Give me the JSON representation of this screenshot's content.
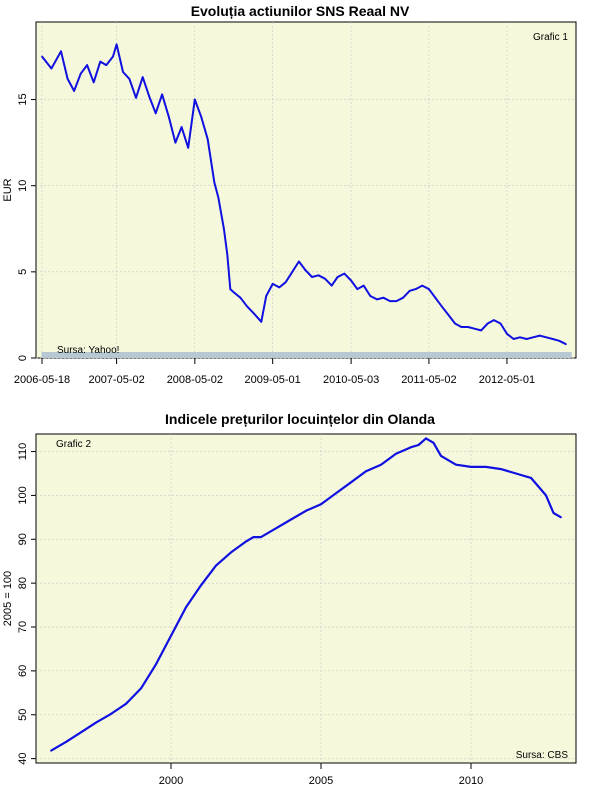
{
  "colors": {
    "panel_bg": "#f6f8dc",
    "line": "#1010e0",
    "grid": "#c8c8c8",
    "rug": "#b8c8d2"
  },
  "chart_data": [
    {
      "type": "line",
      "title": "Evoluția actiunilor SNS Reaal NV",
      "ylabel": "EUR",
      "xlabel": "",
      "annotations": {
        "label": "Grafic 1",
        "source": "Sursa: Yahoo!"
      },
      "xlim": [
        "2006-04-20",
        "2013-03-20"
      ],
      "ylim": [
        0,
        19.5
      ],
      "yticks": [
        0,
        5,
        10,
        15
      ],
      "xtick_labels": [
        "2006-05-18",
        "2007-05-02",
        "2008-05-02",
        "2009-05-01",
        "2010-05-03",
        "2011-05-02",
        "2012-05-01"
      ],
      "x": [
        "2006-05-18",
        "2006-07-01",
        "2006-08-15",
        "2006-09-15",
        "2006-10-15",
        "2006-11-15",
        "2006-12-15",
        "2007-01-15",
        "2007-02-15",
        "2007-03-15",
        "2007-04-15",
        "2007-05-02",
        "2007-06-01",
        "2007-07-01",
        "2007-08-01",
        "2007-09-01",
        "2007-10-01",
        "2007-11-01",
        "2007-12-01",
        "2008-01-01",
        "2008-02-01",
        "2008-03-01",
        "2008-04-01",
        "2008-05-02",
        "2008-06-01",
        "2008-07-01",
        "2008-08-01",
        "2008-08-20",
        "2008-09-15",
        "2008-10-01",
        "2008-10-15",
        "2008-11-01",
        "2008-12-01",
        "2009-01-01",
        "2009-02-01",
        "2009-03-09",
        "2009-04-01",
        "2009-05-01",
        "2009-06-01",
        "2009-07-01",
        "2009-08-01",
        "2009-09-01",
        "2009-10-01",
        "2009-11-01",
        "2009-12-01",
        "2010-01-01",
        "2010-02-01",
        "2010-03-01",
        "2010-04-01",
        "2010-05-03",
        "2010-06-01",
        "2010-07-01",
        "2010-08-01",
        "2010-09-01",
        "2010-10-01",
        "2010-11-01",
        "2010-12-01",
        "2011-01-01",
        "2011-02-01",
        "2011-03-01",
        "2011-04-01",
        "2011-05-02",
        "2011-06-01",
        "2011-07-01",
        "2011-08-01",
        "2011-09-01",
        "2011-10-01",
        "2011-11-01",
        "2011-12-01",
        "2012-01-01",
        "2012-02-01",
        "2012-03-01",
        "2012-04-01",
        "2012-05-01",
        "2012-06-01",
        "2012-07-01",
        "2012-08-01",
        "2012-09-01",
        "2012-10-01",
        "2012-11-01",
        "2012-12-01",
        "2013-01-01",
        "2013-02-01"
      ],
      "y": [
        17.5,
        16.8,
        17.8,
        16.2,
        15.5,
        16.5,
        17.0,
        16.0,
        17.2,
        17.0,
        17.5,
        18.2,
        16.6,
        16.2,
        15.1,
        16.3,
        15.2,
        14.2,
        15.3,
        14.0,
        12.5,
        13.4,
        12.2,
        15.0,
        14.0,
        12.7,
        10.2,
        9.3,
        7.5,
        6.0,
        4.0,
        3.8,
        3.5,
        3.0,
        2.6,
        2.1,
        3.6,
        4.3,
        4.1,
        4.4,
        5.0,
        5.6,
        5.1,
        4.7,
        4.8,
        4.6,
        4.2,
        4.7,
        4.9,
        4.5,
        4.0,
        4.2,
        3.6,
        3.4,
        3.5,
        3.3,
        3.3,
        3.5,
        3.9,
        4.0,
        4.2,
        4.0,
        3.5,
        3.0,
        2.5,
        2.0,
        1.8,
        1.8,
        1.7,
        1.6,
        2.0,
        2.2,
        2.0,
        1.4,
        1.1,
        1.2,
        1.1,
        1.2,
        1.3,
        1.2,
        1.1,
        1.0,
        0.8
      ]
    },
    {
      "type": "line",
      "title": "Indicele prețurilor locuințelor din Olanda",
      "ylabel": "2005 = 100",
      "xlabel": "",
      "annotations": {
        "label": "Grafic 2",
        "source": "Sursa: CBS"
      },
      "xlim": [
        1995.5,
        2013.5
      ],
      "ylim": [
        39,
        114
      ],
      "yticks": [
        40,
        50,
        60,
        70,
        80,
        90,
        100,
        110
      ],
      "xticks": [
        2000,
        2005,
        2010
      ],
      "x": [
        1996.0,
        1996.5,
        1997.0,
        1997.5,
        1998.0,
        1998.5,
        1999.0,
        1999.5,
        2000.0,
        2000.5,
        2001.0,
        2001.5,
        2002.0,
        2002.5,
        2002.75,
        2003.0,
        2003.5,
        2004.0,
        2004.5,
        2005.0,
        2005.5,
        2006.0,
        2006.5,
        2007.0,
        2007.5,
        2008.0,
        2008.25,
        2008.5,
        2008.75,
        2009.0,
        2009.5,
        2010.0,
        2010.5,
        2011.0,
        2011.5,
        2012.0,
        2012.25,
        2012.5,
        2012.75,
        2013.0
      ],
      "y": [
        41.8,
        43.8,
        46.0,
        48.2,
        50.2,
        52.5,
        56.0,
        61.5,
        68.0,
        74.5,
        79.5,
        84.0,
        87.0,
        89.5,
        90.5,
        90.5,
        92.5,
        94.5,
        96.5,
        98.0,
        100.5,
        103.0,
        105.5,
        107.0,
        109.5,
        111.0,
        111.5,
        113.0,
        112.0,
        109.0,
        107.0,
        106.5,
        106.5,
        106.0,
        105.0,
        104.0,
        102.0,
        100.0,
        96.0,
        95.0
      ]
    }
  ]
}
